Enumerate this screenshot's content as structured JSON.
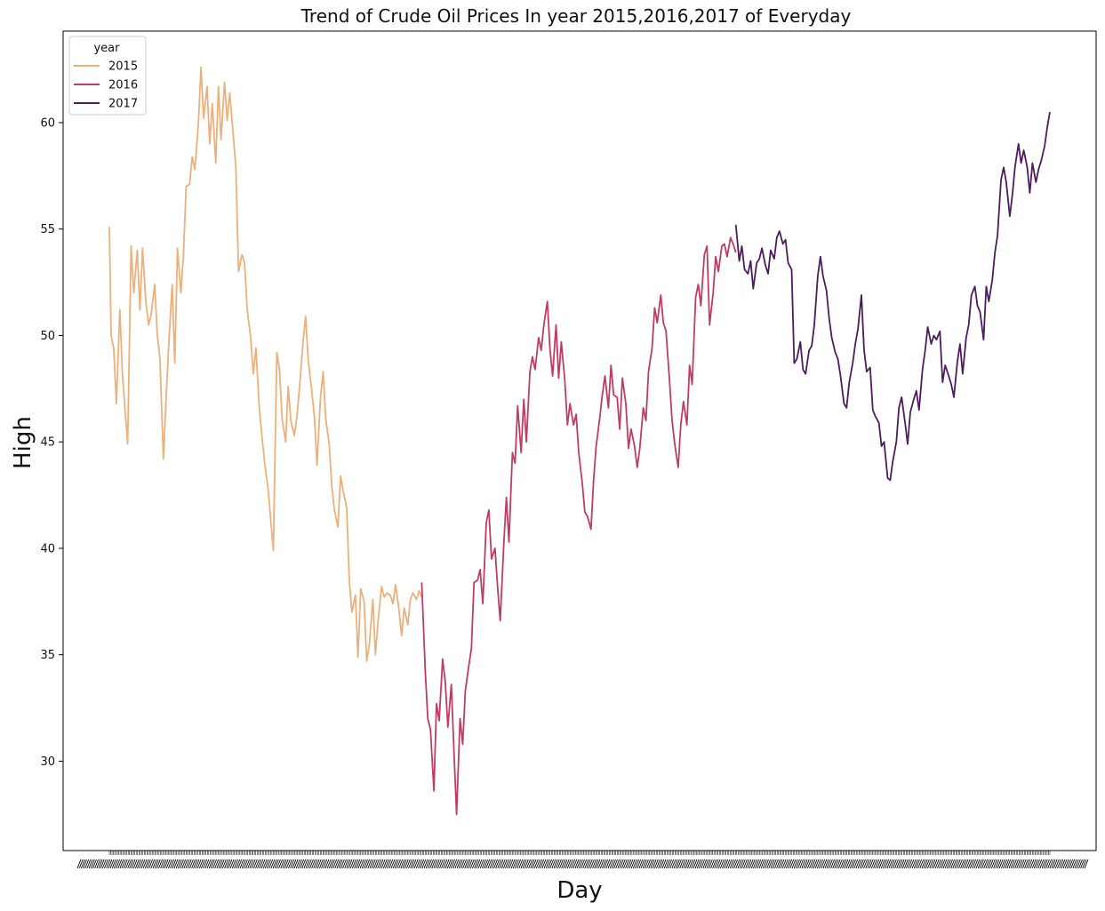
{
  "chart_data": {
    "type": "line",
    "title": "Trend of Crude Oil Prices In year 2015,2016,2017 of Everyday",
    "xlabel": "Day",
    "ylabel": "High",
    "ylim": [
      25.8,
      64.3
    ],
    "yticks": [
      30,
      35,
      40,
      45,
      50,
      55,
      60
    ],
    "grid": false,
    "x_tick_labels_legible": false,
    "legend": {
      "title": "year",
      "placement": "top-left",
      "entries": [
        "2015",
        "2016",
        "2017"
      ]
    },
    "series": [
      {
        "name": "2015",
        "color": "#EDB07A",
        "x": [
          0,
          2,
          5,
          8,
          12,
          15,
          18,
          21,
          25,
          28,
          32,
          35,
          38,
          42,
          45,
          48,
          52,
          55,
          58,
          62,
          65,
          68,
          72,
          75,
          78,
          82,
          85,
          88,
          92,
          95,
          98,
          102,
          105,
          108,
          112,
          115,
          118,
          122,
          125,
          128,
          132,
          135,
          138,
          142,
          145,
          148,
          152,
          155,
          158,
          162,
          165,
          168,
          172,
          175,
          178,
          182,
          185,
          188,
          192,
          195,
          198,
          202,
          205,
          208,
          212,
          215,
          218,
          222,
          225,
          228,
          232,
          235,
          238,
          242,
          245,
          248,
          252,
          255,
          258,
          262,
          265,
          268,
          272,
          275,
          278,
          282,
          285,
          288,
          292,
          295,
          298,
          302,
          305,
          308,
          312,
          315,
          318,
          322,
          325,
          328,
          332,
          335,
          338,
          342,
          345,
          348,
          352,
          355,
          358
        ],
        "values": [
          55.1,
          50.0,
          49.4,
          46.8,
          51.2,
          48.2,
          46.5,
          44.9,
          54.2,
          52.0,
          54.0,
          51.2,
          54.1,
          51.5,
          50.5,
          51.0,
          52.4,
          50.0,
          48.9,
          44.2,
          47.0,
          49.5,
          52.4,
          48.7,
          54.1,
          52.0,
          53.8,
          57.0,
          57.1,
          58.4,
          57.8,
          59.9,
          62.6,
          60.2,
          61.7,
          59.0,
          60.9,
          58.1,
          61.7,
          59.2,
          61.9,
          60.1,
          61.4,
          59.4,
          57.9,
          53.0,
          53.8,
          53.4,
          51.2,
          49.9,
          48.2,
          49.4,
          46.5,
          45.2,
          44.0,
          42.8,
          41.3,
          39.9,
          49.2,
          48.4,
          46.1,
          45.0,
          47.6,
          46.0,
          45.3,
          46.2,
          47.6,
          49.7,
          50.9,
          48.8,
          47.4,
          46.2,
          43.9,
          47.1,
          48.3,
          46.1,
          44.9,
          42.9,
          41.8,
          41.0,
          43.4,
          42.7,
          41.9,
          38.5,
          37.0,
          37.8,
          34.9,
          38.1,
          37.5,
          34.7,
          35.5,
          37.6,
          35.0,
          36.6,
          38.2,
          37.7,
          37.9,
          37.8,
          37.4,
          38.3,
          37.1,
          35.9,
          37.2,
          36.4,
          37.6,
          37.9,
          37.6,
          38.0,
          37.7
        ],
        "note_unused": ""
      },
      {
        "name": "2016",
        "color": "#C03C62",
        "x": [
          358,
          362,
          365,
          368,
          372,
          375,
          378,
          382,
          385,
          388,
          392,
          395,
          398,
          402,
          405,
          408,
          412,
          415,
          418,
          422,
          425,
          428,
          432,
          435,
          438,
          442,
          445,
          448,
          452,
          455,
          458,
          462,
          465,
          468,
          472,
          475,
          478,
          482,
          485,
          488,
          492,
          495,
          498,
          502,
          505,
          508,
          512,
          515,
          518,
          522,
          525,
          528,
          532,
          535,
          538,
          542,
          545,
          548,
          552,
          555,
          558,
          562,
          565,
          568,
          572,
          575,
          578,
          582,
          585,
          588,
          592,
          595,
          598,
          602,
          605,
          608,
          612,
          615,
          618,
          622,
          625,
          628,
          632,
          635,
          638,
          642,
          645,
          648,
          652,
          655,
          658,
          662,
          665,
          668,
          672,
          675,
          678,
          682,
          685,
          688,
          692,
          695,
          698,
          702,
          705,
          708,
          712,
          715,
          718
        ],
        "values": [
          38.4,
          34.3,
          32.0,
          31.5,
          28.6,
          32.7,
          31.9,
          34.8,
          33.7,
          31.6,
          33.6,
          30.4,
          27.5,
          32.0,
          30.8,
          33.3,
          34.5,
          35.3,
          38.4,
          38.5,
          39.0,
          37.4,
          41.2,
          41.8,
          39.5,
          40.0,
          38.2,
          36.6,
          40.1,
          42.4,
          40.3,
          44.5,
          44.0,
          46.7,
          44.5,
          47.0,
          45.0,
          48.3,
          49.0,
          48.4,
          49.9,
          49.3,
          50.5,
          51.6,
          49.4,
          48.1,
          50.5,
          48.0,
          49.7,
          47.9,
          45.8,
          46.8,
          45.8,
          46.3,
          44.5,
          43.1,
          41.7,
          41.5,
          40.9,
          43.2,
          44.8,
          46.1,
          47.2,
          48.1,
          46.6,
          48.6,
          47.2,
          47.1,
          45.6,
          48.0,
          46.8,
          44.7,
          45.6,
          44.8,
          43.8,
          44.7,
          46.6,
          46.0,
          48.3,
          49.4,
          51.3,
          50.6,
          51.9,
          50.6,
          50.2,
          47.9,
          46.0,
          44.9,
          43.8,
          45.8,
          46.9,
          45.8,
          48.6,
          47.7,
          51.8,
          52.4,
          51.4,
          53.8,
          54.2,
          50.5,
          52.0,
          53.7,
          53.0,
          54.2,
          54.3,
          53.7,
          54.6,
          54.3,
          53.9
        ],
        "note_unused": ""
      },
      {
        "name": "2017",
        "color": "#4C1D5C",
        "x": [
          718,
          722,
          725,
          728,
          732,
          735,
          738,
          742,
          745,
          748,
          752,
          755,
          758,
          762,
          765,
          768,
          772,
          775,
          778,
          782,
          785,
          788,
          792,
          795,
          798,
          802,
          805,
          808,
          812,
          815,
          818,
          822,
          825,
          828,
          832,
          835,
          838,
          842,
          845,
          848,
          852,
          855,
          858,
          862,
          865,
          868,
          872,
          875,
          878,
          882,
          885,
          888,
          892,
          895,
          898,
          902,
          905,
          908,
          912,
          915,
          918,
          922,
          925,
          928,
          932,
          935,
          938,
          942,
          945,
          948,
          952,
          955,
          958,
          962,
          965,
          968,
          972,
          975,
          978,
          982,
          985,
          988,
          992,
          995,
          998,
          1002,
          1005,
          1008,
          1012,
          1015,
          1018,
          1022,
          1025,
          1028,
          1032,
          1035,
          1038,
          1042,
          1045,
          1048,
          1052,
          1055,
          1058,
          1062,
          1065,
          1068,
          1072,
          1075,
          1078
        ],
        "values": [
          55.2,
          53.5,
          54.2,
          53.1,
          52.9,
          53.5,
          52.2,
          53.4,
          53.6,
          54.1,
          53.3,
          52.9,
          54.0,
          53.6,
          54.6,
          54.9,
          54.3,
          54.5,
          53.4,
          53.1,
          48.7,
          48.9,
          49.7,
          48.4,
          48.2,
          49.3,
          49.5,
          50.5,
          52.8,
          53.7,
          52.8,
          52.1,
          50.8,
          49.9,
          49.2,
          48.9,
          48.1,
          46.8,
          46.6,
          47.8,
          48.7,
          49.6,
          50.3,
          51.9,
          49.3,
          48.3,
          48.5,
          46.5,
          46.2,
          45.9,
          44.8,
          45.0,
          43.3,
          43.2,
          44.1,
          45.0,
          46.6,
          47.1,
          45.9,
          44.9,
          46.4,
          47.0,
          47.4,
          46.5,
          48.4,
          49.3,
          50.4,
          49.6,
          50.0,
          49.8,
          50.2,
          47.8,
          48.6,
          48.1,
          47.7,
          47.1,
          48.8,
          49.6,
          48.2,
          49.9,
          50.5,
          51.9,
          52.3,
          51.4,
          51.1,
          49.8,
          52.3,
          51.6,
          52.6,
          53.9,
          54.7,
          57.3,
          57.9,
          57.2,
          55.6,
          56.6,
          57.9,
          59.0,
          58.1,
          58.7,
          57.9,
          56.7,
          58.1,
          57.2,
          57.8,
          58.2,
          58.9,
          59.8,
          60.5
        ],
        "note_unused": ""
      }
    ]
  }
}
